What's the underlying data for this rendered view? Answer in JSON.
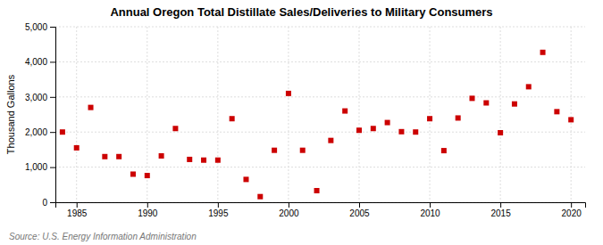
{
  "chart_data": {
    "type": "scatter",
    "title": "Annual Oregon Total Distillate Sales/Deliveries to Military Consumers",
    "y_label": "Thousand Gallons",
    "source": "Source: U.S. Energy Information Administration",
    "x": [
      1984,
      1985,
      1986,
      1987,
      1988,
      1989,
      1990,
      1991,
      1992,
      1993,
      1994,
      1995,
      1996,
      1997,
      1998,
      1999,
      2000,
      2001,
      2002,
      2003,
      2004,
      2005,
      2006,
      2007,
      2008,
      2009,
      2010,
      2011,
      2012,
      2013,
      2014,
      2015,
      2016,
      2017,
      2018,
      2019,
      2020
    ],
    "values": [
      2000,
      1550,
      2700,
      1300,
      1300,
      800,
      760,
      1320,
      2100,
      1220,
      1200,
      1200,
      2380,
      650,
      160,
      1480,
      3100,
      1480,
      330,
      1760,
      2600,
      2050,
      2100,
      2270,
      2010,
      2000,
      2380,
      1470,
      2400,
      2960,
      2830,
      1980,
      2800,
      3290,
      4270,
      2580,
      2350
    ],
    "color": "#cc0000",
    "marker": "square",
    "xlim": [
      1983.5,
      2021
    ],
    "ylim": [
      0,
      5000
    ],
    "xticks": [
      1985,
      1990,
      1995,
      2000,
      2005,
      2010,
      2015,
      2020
    ],
    "yticks": [
      0,
      {
        "value": 1000,
        "label": "1,000"
      },
      {
        "value": 2000,
        "label": "2,000"
      },
      {
        "value": 3000,
        "label": "3,000"
      },
      {
        "value": 4000,
        "label": "4,000"
      },
      {
        "value": 5000,
        "label": "5,000"
      }
    ],
    "grid": true
  }
}
